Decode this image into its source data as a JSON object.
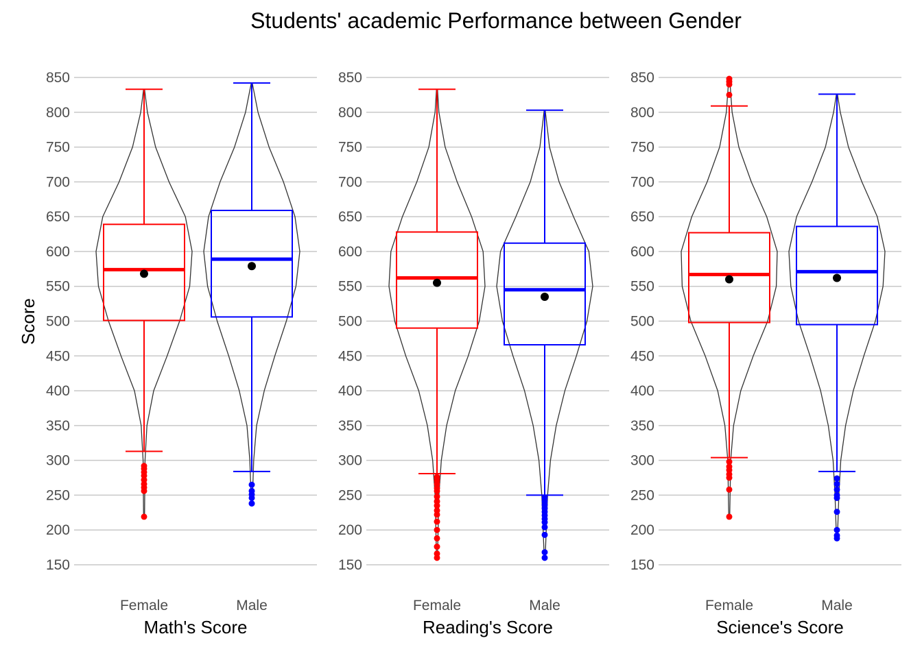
{
  "chart_data": {
    "type": "box-violin",
    "title": "Students' academic Performance between Gender",
    "ylabel": "Score",
    "ylim": [
      150,
      850
    ],
    "yticks": [
      150,
      200,
      250,
      300,
      350,
      400,
      450,
      500,
      550,
      600,
      650,
      700,
      750,
      800,
      850
    ],
    "grid": "horizontal",
    "legend": "none",
    "categories": [
      "Female",
      "Male"
    ],
    "colors": {
      "Female": "#ff0000",
      "Male": "#0000ff",
      "mean": "#000000",
      "violin": "#333333",
      "grid": "#c8c8c8"
    },
    "panels": [
      {
        "xlabel": "Math's Score",
        "groups": [
          {
            "name": "Female",
            "whisker_low": 313,
            "q1": 501,
            "median": 574,
            "q3": 639,
            "whisker_high": 833,
            "mean": 568,
            "outliers": [
              292,
              288,
              283,
              278,
              272,
              266,
              261,
              256,
              219
            ],
            "violin": [
              [
                219,
                0.01
              ],
              [
                300,
                0.02
              ],
              [
                350,
                0.06
              ],
              [
                400,
                0.2
              ],
              [
                450,
                0.48
              ],
              [
                500,
                0.74
              ],
              [
                550,
                0.95
              ],
              [
                600,
                1.0
              ],
              [
                650,
                0.86
              ],
              [
                700,
                0.52
              ],
              [
                750,
                0.24
              ],
              [
                800,
                0.07
              ],
              [
                833,
                0.01
              ]
            ]
          },
          {
            "name": "Male",
            "whisker_low": 284,
            "q1": 506,
            "median": 589,
            "q3": 659,
            "whisker_high": 842,
            "mean": 579,
            "outliers": [
              265,
              256,
              251,
              246,
              238
            ],
            "violin": [
              [
                238,
                0.01
              ],
              [
                300,
                0.04
              ],
              [
                350,
                0.1
              ],
              [
                400,
                0.26
              ],
              [
                450,
                0.48
              ],
              [
                500,
                0.72
              ],
              [
                550,
                0.92
              ],
              [
                600,
                1.0
              ],
              [
                650,
                0.9
              ],
              [
                700,
                0.66
              ],
              [
                750,
                0.36
              ],
              [
                800,
                0.13
              ],
              [
                842,
                0.01
              ]
            ]
          }
        ]
      },
      {
        "xlabel": "Reading's Score",
        "groups": [
          {
            "name": "Female",
            "whisker_low": 281,
            "q1": 490,
            "median": 562,
            "q3": 628,
            "whisker_high": 833,
            "mean": 555,
            "outliers": [
              276,
              271,
              266,
              260,
              256,
              248,
              241,
              235,
              228,
              222,
              212,
              200,
              188,
              176,
              166,
              160
            ],
            "violin": [
              [
                160,
                0.01
              ],
              [
                250,
                0.04
              ],
              [
                300,
                0.09
              ],
              [
                350,
                0.2
              ],
              [
                400,
                0.38
              ],
              [
                450,
                0.65
              ],
              [
                500,
                0.88
              ],
              [
                550,
                1.0
              ],
              [
                600,
                0.96
              ],
              [
                650,
                0.72
              ],
              [
                700,
                0.42
              ],
              [
                750,
                0.17
              ],
              [
                800,
                0.04
              ],
              [
                833,
                0.01
              ]
            ]
          },
          {
            "name": "Male",
            "whisker_low": 250,
            "q1": 466,
            "median": 545,
            "q3": 612,
            "whisker_high": 803,
            "mean": 535,
            "outliers": [
              246,
              241,
              236,
              231,
              226,
              221,
              216,
              211,
              204,
              193,
              168,
              160
            ],
            "violin": [
              [
                160,
                0.01
              ],
              [
                250,
                0.06
              ],
              [
                300,
                0.12
              ],
              [
                350,
                0.24
              ],
              [
                400,
                0.42
              ],
              [
                450,
                0.66
              ],
              [
                500,
                0.88
              ],
              [
                550,
                1.0
              ],
              [
                600,
                0.92
              ],
              [
                650,
                0.6
              ],
              [
                700,
                0.3
              ],
              [
                750,
                0.1
              ],
              [
                803,
                0.01
              ]
            ]
          }
        ]
      },
      {
        "xlabel": "Science's Score",
        "groups": [
          {
            "name": "Female",
            "whisker_low": 304,
            "q1": 498,
            "median": 567,
            "q3": 627,
            "whisker_high": 809,
            "mean": 560,
            "outliers": [
              848,
              844,
              840,
              825,
              298,
              291,
              286,
              280,
              275,
              258,
              219
            ],
            "violin": [
              [
                219,
                0.01
              ],
              [
                300,
                0.03
              ],
              [
                350,
                0.09
              ],
              [
                400,
                0.24
              ],
              [
                450,
                0.5
              ],
              [
                500,
                0.8
              ],
              [
                550,
                0.98
              ],
              [
                600,
                1.0
              ],
              [
                650,
                0.78
              ],
              [
                700,
                0.46
              ],
              [
                750,
                0.2
              ],
              [
                800,
                0.06
              ],
              [
                848,
                0.01
              ]
            ]
          },
          {
            "name": "Male",
            "whisker_low": 284,
            "q1": 495,
            "median": 571,
            "q3": 636,
            "whisker_high": 826,
            "mean": 562,
            "outliers": [
              274,
              266,
              258,
              250,
              246,
              226,
              200,
              192,
              188
            ],
            "violin": [
              [
                188,
                0.01
              ],
              [
                250,
                0.04
              ],
              [
                300,
                0.08
              ],
              [
                350,
                0.18
              ],
              [
                400,
                0.34
              ],
              [
                450,
                0.56
              ],
              [
                500,
                0.8
              ],
              [
                550,
                0.96
              ],
              [
                600,
                1.0
              ],
              [
                650,
                0.84
              ],
              [
                700,
                0.52
              ],
              [
                750,
                0.24
              ],
              [
                800,
                0.07
              ],
              [
                826,
                0.01
              ]
            ]
          }
        ]
      }
    ]
  }
}
